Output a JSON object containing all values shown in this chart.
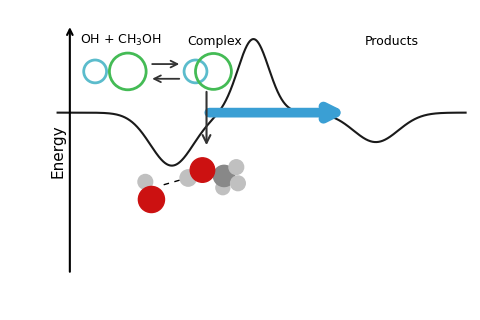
{
  "bg_color": "#ffffff",
  "curve_color": "#1a1a1a",
  "energy_label": "Energy",
  "label_oh": "OH + CH$_3$OH",
  "label_complex": "Complex",
  "label_products": "Products",
  "blue_arrow_color": "#3a9fd4",
  "circle_blue_color": "#5bbccc",
  "circle_green_color": "#44bb55",
  "arrow_color": "#333333",
  "mol_red_color": "#cc1111",
  "mol_gray_color": "#888888",
  "mol_lightgray_color": "#c0c0c0",
  "mol_white_color": "#e0e0e0",
  "figsize": [
    4.8,
    3.2
  ],
  "dpi": 100
}
